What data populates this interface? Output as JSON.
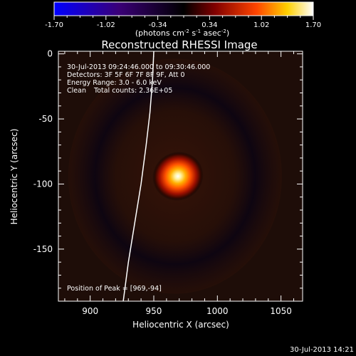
{
  "chart_data": {
    "type": "heatmap",
    "title": "Reconstructed RHESSI Image",
    "xlabel": "Heliocentric X (arcsec)",
    "ylabel": "Heliocentric Y (arcsec)",
    "xlim": [
      875,
      1067
    ],
    "ylim": [
      -190,
      2
    ],
    "x_ticks": [
      900,
      950,
      1000,
      1050
    ],
    "y_ticks": [
      0,
      -50,
      -100,
      -150
    ],
    "colorbar": {
      "min": -1.7,
      "max": 1.7,
      "ticks": [
        "-1.70",
        "-1.02",
        "-0.34",
        "0.34",
        "1.02",
        "1.70"
      ],
      "unit_label": "(photons cm^-2 s^-1 asec^-2)",
      "colormap": [
        "#0000ff",
        "#3a0077",
        "#000000",
        "#800000",
        "#ff4400",
        "#ffd000",
        "#ffffff"
      ]
    },
    "source_peak": {
      "x": 969,
      "y": -94,
      "peak_value": 1.7
    },
    "limb_curve": [
      [
        950,
        2
      ],
      [
        949,
        -20
      ],
      [
        947,
        -45
      ],
      [
        944,
        -70
      ],
      [
        940,
        -100
      ],
      [
        935,
        -130
      ],
      [
        930,
        -160
      ],
      [
        926,
        -190
      ]
    ],
    "annotations": {
      "time_range": "30-Jul-2013 09:24:46.000 to 09:30:46.000",
      "detectors": "Detectors: 3F 5F 6F 7F 8F 9F, Att 0",
      "energy": "Energy Range: 3.0 - 6.0 keV",
      "clean_label": "Clean",
      "total_counts": "Total counts: 2.36E+05",
      "peak_position": "Position of Peak = [969,-94]"
    },
    "timestamp": "30-Jul-2013 14:21"
  }
}
